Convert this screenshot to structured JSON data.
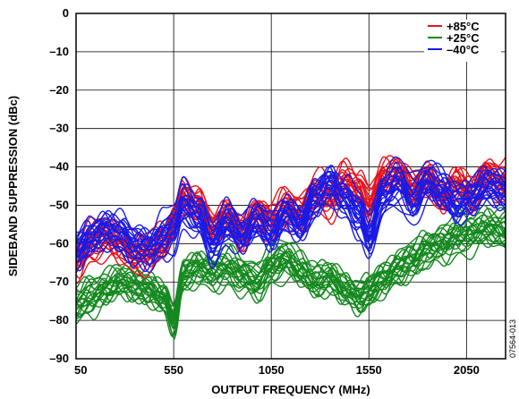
{
  "chart_data": {
    "type": "line",
    "xlabel": "OUTPUT FREQUENCY (MHz)",
    "ylabel": "SIDEBAND SUPPRESSION (dBc)",
    "xlim": [
      50,
      2250
    ],
    "ylim": [
      -90,
      0
    ],
    "x_ticks": [
      50,
      550,
      1050,
      1550,
      2050
    ],
    "y_ticks": [
      0,
      -10,
      -20,
      -30,
      -40,
      -50,
      -60,
      -70,
      -80,
      -90
    ],
    "x_tick_labels": [
      "50",
      "550",
      "1050",
      "1550",
      "2050"
    ],
    "y_tick_labels": [
      "0",
      "–10",
      "–20",
      "–30",
      "–40",
      "–50",
      "–60",
      "–70",
      "–80",
      "–90"
    ],
    "grid": true,
    "legend_position": "top-right",
    "figure_code": "07564-013",
    "x": [
      50,
      125,
      200,
      275,
      350,
      425,
      500,
      550,
      600,
      675,
      750,
      825,
      900,
      975,
      1050,
      1125,
      1200,
      1275,
      1350,
      1425,
      1500,
      1550,
      1625,
      1700,
      1775,
      1850,
      1925,
      2000,
      2075,
      2150,
      2250
    ],
    "series": [
      {
        "name": "+85°C",
        "color": "#e8141c",
        "values": [
          -64,
          -60,
          -58,
          -60,
          -63,
          -62,
          -60,
          -55,
          -48,
          -50,
          -56,
          -53,
          -57,
          -52,
          -54,
          -50,
          -52,
          -47,
          -48,
          -44,
          -46,
          -50,
          -43,
          -42,
          -46,
          -43,
          -48,
          -44,
          -47,
          -42,
          -44
        ],
        "spread": 4.5
      },
      {
        "name": "+25°C",
        "color": "#14891e",
        "values": [
          -76,
          -74,
          -72,
          -70,
          -71,
          -72,
          -74,
          -80,
          -68,
          -66,
          -67,
          -66,
          -68,
          -70,
          -66,
          -64,
          -67,
          -70,
          -69,
          -72,
          -74,
          -72,
          -69,
          -66,
          -64,
          -61,
          -60,
          -58,
          -57,
          -56,
          -57
        ],
        "spread": 4.5
      },
      {
        "name": "–40°C",
        "color": "#1a1ae6",
        "values": [
          -62,
          -58,
          -56,
          -57,
          -60,
          -61,
          -58,
          -56,
          -50,
          -53,
          -60,
          -55,
          -58,
          -54,
          -57,
          -52,
          -55,
          -48,
          -44,
          -48,
          -52,
          -58,
          -47,
          -44,
          -49,
          -44,
          -46,
          -50,
          -48,
          -45,
          -46
        ],
        "spread": 5.5
      }
    ]
  }
}
